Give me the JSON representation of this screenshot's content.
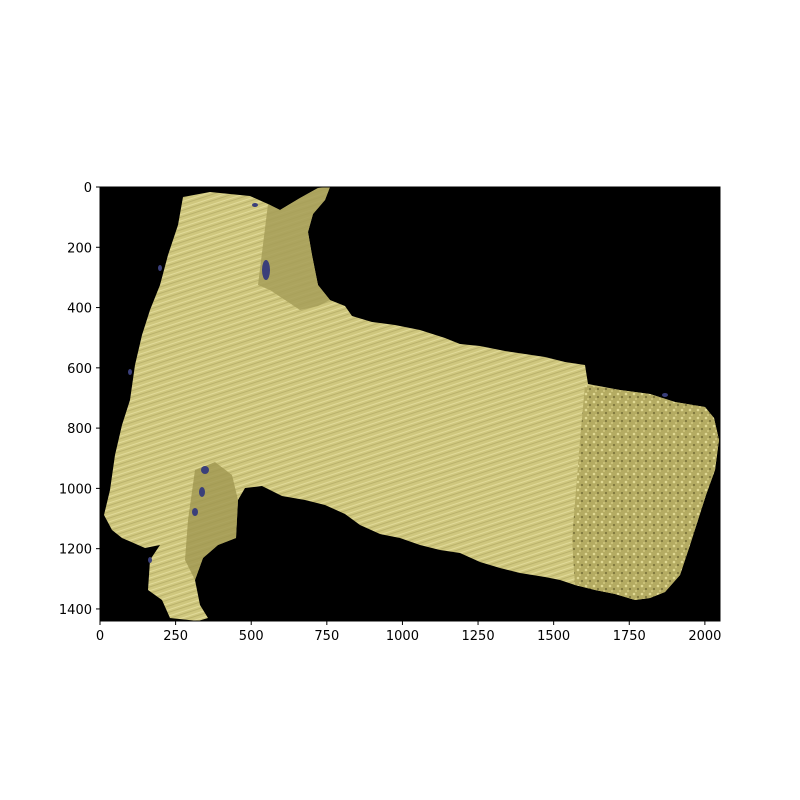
{
  "image": {
    "description_tag": "micrograph-image-plot",
    "background_color": "#000000",
    "tissue_color": "#cfc77e",
    "tissue_dark_color": "#8f8747",
    "stain_color": "#3a3f7a"
  },
  "axes": {
    "xlim": [
      0,
      2050
    ],
    "ylim": [
      1440,
      0
    ],
    "x_ticks": [
      0,
      250,
      500,
      750,
      1000,
      1250,
      1500,
      1750,
      2000
    ],
    "x_tick_labels": [
      "0",
      "250",
      "500",
      "750",
      "1000",
      "1250",
      "1500",
      "1750",
      "2000"
    ],
    "y_ticks": [
      0,
      200,
      400,
      600,
      800,
      1000,
      1200,
      1400
    ],
    "y_tick_labels": [
      "0",
      "200",
      "400",
      "600",
      "800",
      "1000",
      "1200",
      "1400"
    ],
    "y_inverted": true
  }
}
